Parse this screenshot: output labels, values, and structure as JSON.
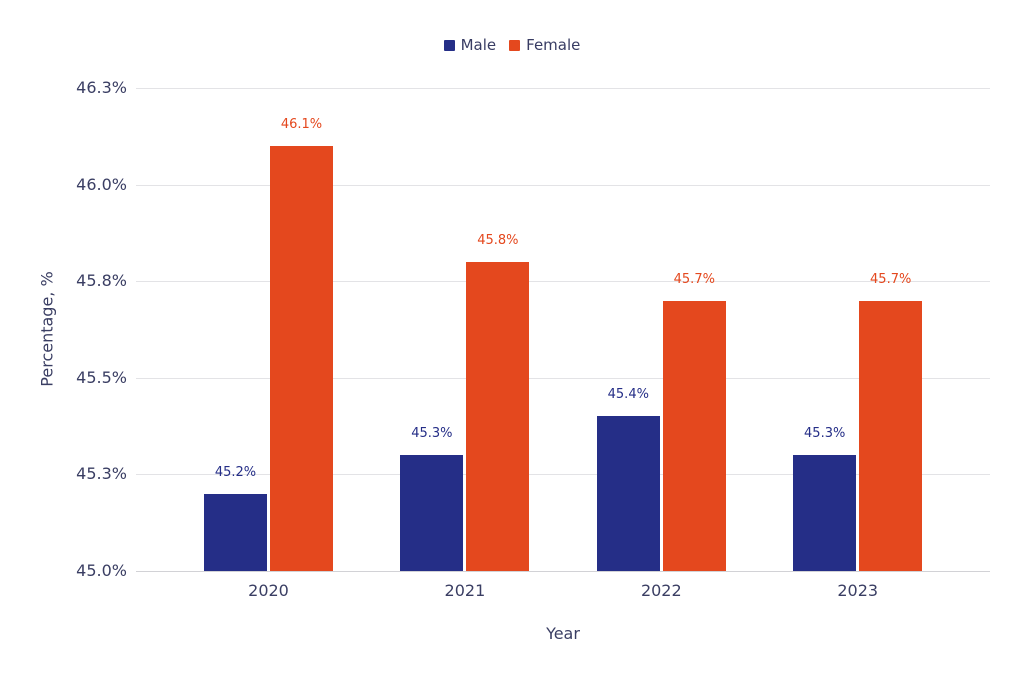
{
  "chart_data": {
    "type": "bar",
    "title": "",
    "categories": [
      "2020",
      "2021",
      "2022",
      "2023"
    ],
    "series": [
      {
        "name": "Male",
        "color": "#252e87",
        "values": [
          45.2,
          45.3,
          45.4,
          45.3
        ],
        "data_labels": [
          "45.2%",
          "45.3%",
          "45.4%",
          "45.3%"
        ]
      },
      {
        "name": "Female",
        "color": "#e4481e",
        "values": [
          46.1,
          45.8,
          45.7,
          45.7
        ],
        "data_labels": [
          "46.1%",
          "45.8%",
          "45.7%",
          "45.7%"
        ]
      }
    ],
    "xlabel": "Year",
    "ylabel": "Percentage, %",
    "ylim": [
      45.0,
      46.25
    ],
    "yticks": [
      {
        "value": 45.0,
        "label": "45.0%"
      },
      {
        "value": 45.25,
        "label": "45.3%"
      },
      {
        "value": 45.5,
        "label": "45.5%"
      },
      {
        "value": 45.75,
        "label": "45.8%"
      },
      {
        "value": 46.0,
        "label": "46.0%"
      },
      {
        "value": 46.25,
        "label": "46.3%"
      }
    ],
    "grid": true,
    "legend_position": "top"
  },
  "colors": {
    "male": "#252e87",
    "female": "#e4481e",
    "axis_text": "#3a3e63",
    "gridline": "#e3e3e6",
    "baseline": "#d2d2d6",
    "background": "#ffffff"
  }
}
